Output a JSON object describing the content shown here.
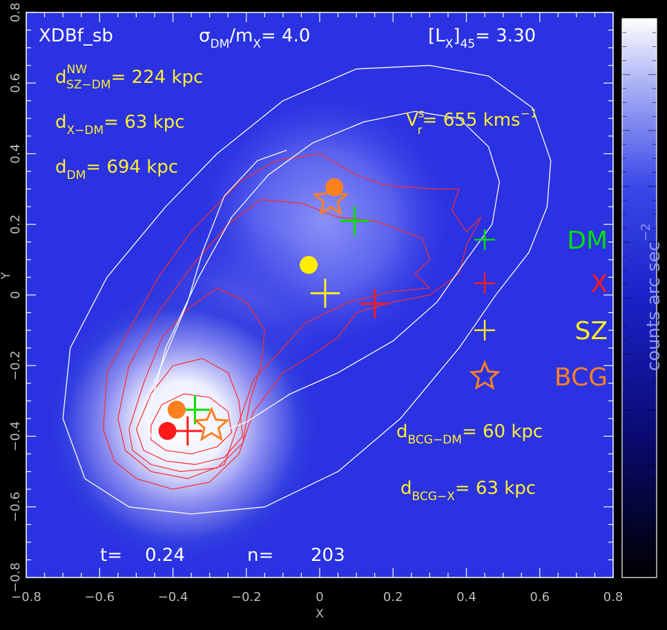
{
  "chart_data": {
    "type": "scatter",
    "title": "XDBf_sb",
    "xlabel": "X",
    "ylabel": "Y",
    "xlim": [
      -0.8,
      0.8
    ],
    "ylim": [
      -0.8,
      0.8
    ],
    "x_ticks": [
      "−0.8",
      "−0.6",
      "−0.4",
      "−0.2",
      "0",
      "0.2",
      "0.4",
      "0.6",
      "0.8"
    ],
    "y_ticks": [
      "−0.8",
      "−0.6",
      "−0.4",
      "−0.2",
      "0",
      "0.2",
      "0.4",
      "0.6",
      "0.8"
    ],
    "x_tick_values": [
      -0.8,
      -0.6,
      -0.4,
      -0.2,
      0,
      0.2,
      0.4,
      0.6,
      0.8
    ],
    "y_tick_values": [
      -0.8,
      -0.6,
      -0.4,
      -0.2,
      0,
      0.2,
      0.4,
      0.6,
      0.8
    ],
    "colorbar_label": "counts arc sec",
    "colorbar_exponent": "−2",
    "header": {
      "sigma_label": "σ",
      "sigma_sub": "DM",
      "mass_label": "/m",
      "mass_sub": "X",
      "sigma_eq": "=  4.0",
      "lx_open": "[L",
      "lx_sub_x": "X",
      "lx_close": "]",
      "lx_sub_45": "45",
      "lx_eq": "=    3.30"
    },
    "annotations": {
      "d_sz_dm_base": "d",
      "d_sz_dm_sup": "NW",
      "d_sz_dm_sub": "SZ−DM",
      "d_sz_dm_val": "= 224 kpc",
      "d_x_dm_base": "d",
      "d_x_dm_sub": "X−DM",
      "d_x_dm_val": "=      63 kpc",
      "d_dm_base": "d",
      "d_dm_sub": "DM",
      "d_dm_val": "=  694 kpc",
      "vr_base": "V",
      "vr_sub": "r",
      "vr_sup": "s",
      "vr_val": "= 655 kms",
      "vr_exp": "−1",
      "d_bcg_dm_base": "d",
      "d_bcg_dm_sub": "BCG−DM",
      "d_bcg_dm_val": "=   60 kpc",
      "d_bcg_x_base": "d",
      "d_bcg_x_sub": "BCG−X",
      "d_bcg_x_val": "=      63 kpc",
      "t_label": "t=",
      "t_val": "0.24",
      "n_label": "n=",
      "n_val": "203"
    },
    "legend": [
      {
        "label": "DM",
        "color": "#00e000",
        "marker": "plus"
      },
      {
        "label": "X",
        "color": "#ff1a1a",
        "marker": "plus"
      },
      {
        "label": "SZ",
        "color": "#ffee22",
        "marker": "plus"
      },
      {
        "label": "BCG",
        "color": "#ff8020",
        "marker": "star"
      }
    ],
    "markers": [
      {
        "kind": "plus",
        "color": "#00e000",
        "x": 0.095,
        "y": 0.21
      },
      {
        "kind": "plus",
        "color": "#ff1a1a",
        "x": 0.15,
        "y": -0.025
      },
      {
        "kind": "plus",
        "color": "#ffee22",
        "x": 0.015,
        "y": 0.005
      },
      {
        "kind": "circle",
        "color": "#ffee00",
        "x": -0.03,
        "y": 0.085
      },
      {
        "kind": "circle",
        "color": "#ff8020",
        "x": 0.04,
        "y": 0.305
      },
      {
        "kind": "star",
        "color": "#ff8020",
        "x": 0.03,
        "y": 0.27
      },
      {
        "kind": "plus",
        "color": "#00e000",
        "x": -0.34,
        "y": -0.325
      },
      {
        "kind": "plus",
        "color": "#ff1a1a",
        "x": -0.36,
        "y": -0.385
      },
      {
        "kind": "circle",
        "color": "#ff8020",
        "x": -0.39,
        "y": -0.325
      },
      {
        "kind": "circle",
        "color": "#ff1a1a",
        "x": -0.415,
        "y": -0.385
      },
      {
        "kind": "star",
        "color": "#ff8020",
        "x": -0.295,
        "y": -0.37
      }
    ],
    "contours_white": [
      [
        [
          -0.7,
          -0.35
        ],
        [
          -0.68,
          -0.15
        ],
        [
          -0.58,
          0.05
        ],
        [
          -0.42,
          0.25
        ],
        [
          -0.28,
          0.4
        ],
        [
          -0.1,
          0.55
        ],
        [
          0.1,
          0.64
        ],
        [
          0.3,
          0.65
        ],
        [
          0.46,
          0.62
        ],
        [
          0.58,
          0.53
        ],
        [
          0.63,
          0.38
        ],
        [
          0.62,
          0.25
        ],
        [
          0.57,
          0.12
        ],
        [
          0.48,
          0.0
        ],
        [
          0.38,
          -0.15
        ],
        [
          0.22,
          -0.35
        ],
        [
          0.05,
          -0.5
        ],
        [
          -0.15,
          -0.6
        ],
        [
          -0.35,
          -0.62
        ],
        [
          -0.52,
          -0.6
        ],
        [
          -0.64,
          -0.52
        ],
        [
          -0.7,
          -0.35
        ]
      ],
      [
        [
          -0.47,
          -0.35
        ],
        [
          -0.42,
          -0.15
        ],
        [
          -0.33,
          0.05
        ],
        [
          -0.24,
          0.22
        ],
        [
          -0.14,
          0.34
        ],
        [
          -0.02,
          0.43
        ],
        [
          0.12,
          0.49
        ],
        [
          0.26,
          0.52
        ],
        [
          0.38,
          0.5
        ],
        [
          0.46,
          0.42
        ],
        [
          0.49,
          0.32
        ],
        [
          0.47,
          0.2
        ],
        [
          0.4,
          0.1
        ],
        [
          0.32,
          -0.02
        ],
        [
          0.2,
          -0.13
        ],
        [
          0.05,
          -0.22
        ],
        [
          -0.08,
          -0.28
        ],
        [
          -0.2,
          -0.36
        ],
        [
          -0.3,
          -0.4
        ],
        [
          -0.4,
          -0.42
        ],
        [
          -0.46,
          -0.4
        ],
        [
          -0.47,
          -0.35
        ]
      ],
      [
        [
          -0.47,
          -0.3
        ],
        [
          -0.42,
          -0.17
        ],
        [
          -0.36,
          -0.02
        ],
        [
          -0.32,
          0.12
        ],
        [
          -0.26,
          0.28
        ],
        [
          -0.17,
          0.38
        ],
        [
          -0.09,
          0.41
        ]
      ]
    ],
    "contours_red": [
      [
        [
          -0.59,
          -0.38
        ],
        [
          -0.58,
          -0.22
        ],
        [
          -0.52,
          -0.1
        ],
        [
          -0.44,
          0.05
        ],
        [
          -0.35,
          0.18
        ],
        [
          -0.22,
          0.32
        ],
        [
          -0.12,
          0.38
        ],
        [
          0.0,
          0.4
        ],
        [
          0.1,
          0.34
        ],
        [
          0.18,
          0.31
        ],
        [
          0.32,
          0.3
        ],
        [
          0.38,
          0.3
        ],
        [
          0.36,
          0.24
        ],
        [
          0.4,
          0.18
        ],
        [
          0.44,
          0.22
        ],
        [
          0.4,
          0.14
        ],
        [
          0.38,
          0.06
        ],
        [
          0.3,
          0.0
        ],
        [
          0.2,
          -0.02
        ],
        [
          0.1,
          -0.05
        ],
        [
          0.05,
          -0.12
        ],
        [
          -0.02,
          -0.17
        ],
        [
          -0.1,
          -0.22
        ],
        [
          -0.18,
          -0.33
        ],
        [
          -0.22,
          -0.45
        ],
        [
          -0.3,
          -0.53
        ],
        [
          -0.4,
          -0.55
        ],
        [
          -0.5,
          -0.52
        ],
        [
          -0.56,
          -0.47
        ],
        [
          -0.59,
          -0.38
        ]
      ],
      [
        [
          -0.55,
          -0.35
        ],
        [
          -0.52,
          -0.2
        ],
        [
          -0.44,
          -0.05
        ],
        [
          -0.35,
          0.08
        ],
        [
          -0.25,
          0.2
        ],
        [
          -0.16,
          0.27
        ],
        [
          -0.05,
          0.26
        ],
        [
          0.05,
          0.22
        ],
        [
          0.15,
          0.21
        ],
        [
          0.28,
          0.16
        ],
        [
          0.3,
          0.1
        ],
        [
          0.26,
          0.06
        ],
        [
          0.3,
          0.02
        ],
        [
          0.2,
          0.01
        ],
        [
          0.08,
          -0.02
        ],
        [
          0.02,
          -0.05
        ],
        [
          -0.04,
          -0.08
        ],
        [
          -0.1,
          -0.15
        ],
        [
          -0.18,
          -0.24
        ],
        [
          -0.22,
          -0.36
        ],
        [
          -0.26,
          -0.48
        ],
        [
          -0.36,
          -0.52
        ],
        [
          -0.46,
          -0.5
        ],
        [
          -0.53,
          -0.44
        ],
        [
          -0.55,
          -0.35
        ]
      ],
      [
        [
          -0.52,
          -0.38
        ],
        [
          -0.48,
          -0.25
        ],
        [
          -0.43,
          -0.12
        ],
        [
          -0.36,
          -0.04
        ],
        [
          -0.28,
          0.02
        ],
        [
          -0.2,
          -0.02
        ],
        [
          -0.15,
          -0.1
        ],
        [
          -0.16,
          -0.2
        ],
        [
          -0.19,
          -0.3
        ],
        [
          -0.21,
          -0.42
        ],
        [
          -0.28,
          -0.49
        ],
        [
          -0.38,
          -0.5
        ],
        [
          -0.46,
          -0.48
        ],
        [
          -0.51,
          -0.44
        ],
        [
          -0.52,
          -0.38
        ]
      ],
      [
        [
          -0.5,
          -0.38
        ],
        [
          -0.46,
          -0.28
        ],
        [
          -0.4,
          -0.2
        ],
        [
          -0.32,
          -0.18
        ],
        [
          -0.25,
          -0.22
        ],
        [
          -0.22,
          -0.3
        ],
        [
          -0.21,
          -0.4
        ],
        [
          -0.26,
          -0.46
        ],
        [
          -0.34,
          -0.48
        ],
        [
          -0.42,
          -0.47
        ],
        [
          -0.48,
          -0.44
        ],
        [
          -0.5,
          -0.38
        ]
      ],
      [
        [
          -0.46,
          -0.37
        ],
        [
          -0.43,
          -0.31
        ],
        [
          -0.37,
          -0.28
        ],
        [
          -0.3,
          -0.29
        ],
        [
          -0.25,
          -0.33
        ],
        [
          -0.24,
          -0.39
        ],
        [
          -0.28,
          -0.43
        ],
        [
          -0.35,
          -0.45
        ],
        [
          -0.42,
          -0.44
        ],
        [
          -0.46,
          -0.41
        ],
        [
          -0.46,
          -0.37
        ]
      ]
    ]
  }
}
